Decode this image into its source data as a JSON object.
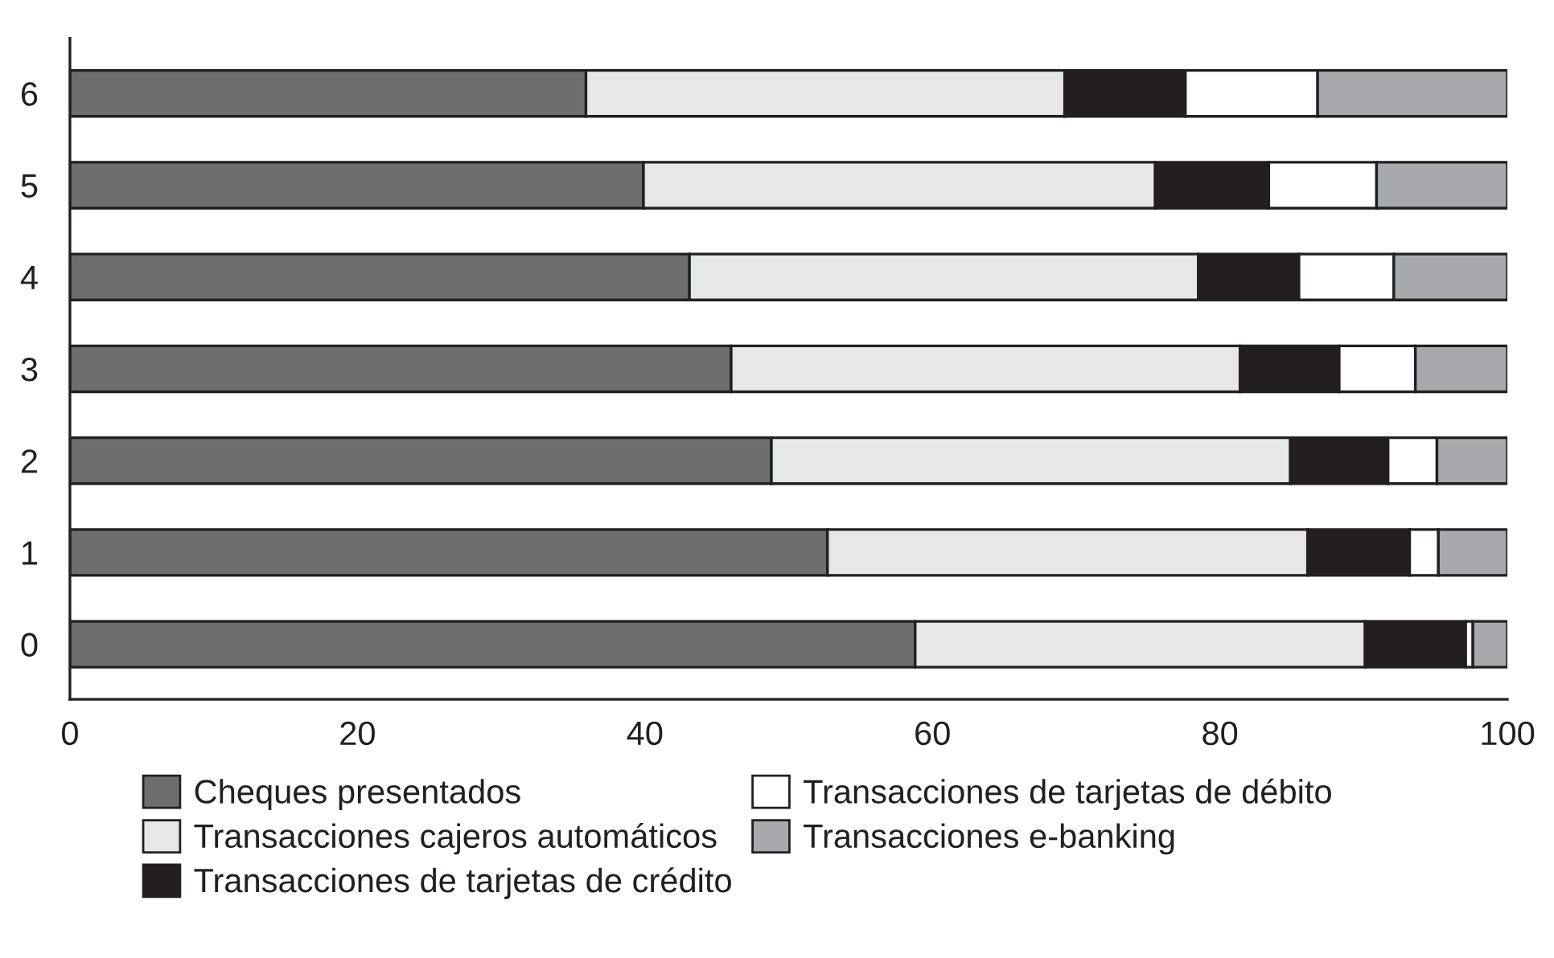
{
  "chart_data": {
    "type": "bar",
    "orientation": "horizontal",
    "stacked": true,
    "categories": [
      "6",
      "5",
      "4",
      "3",
      "2",
      "1",
      "0"
    ],
    "series": [
      {
        "name": "Cheques presentados",
        "color": "#6d6e70",
        "values": [
          35.9,
          39.9,
          43.1,
          46.0,
          48.8,
          52.7,
          58.8
        ]
      },
      {
        "name": "Transacciones cajeros automáticos",
        "color": "#e6e7e8",
        "values": [
          33.3,
          35.6,
          35.4,
          35.4,
          36.1,
          33.4,
          31.3
        ]
      },
      {
        "name": "Transacciones de tarjetas de crédito",
        "color": "#231f20",
        "values": [
          8.4,
          7.9,
          7.0,
          6.9,
          6.8,
          7.1,
          7.0
        ]
      },
      {
        "name": "Transacciones de tarjetas de débito",
        "color": "#ffffff",
        "values": [
          9.2,
          7.5,
          6.6,
          5.3,
          3.4,
          2.0,
          0.5
        ]
      },
      {
        "name": "Transacciones e-banking",
        "color": "#a7a9ac",
        "values": [
          13.2,
          9.1,
          7.9,
          6.4,
          4.9,
          4.8,
          2.4
        ]
      }
    ],
    "xlim": [
      0,
      100
    ],
    "xticks": [
      0,
      20,
      40,
      60,
      80,
      100
    ],
    "grid": false,
    "legend": "bottom"
  }
}
